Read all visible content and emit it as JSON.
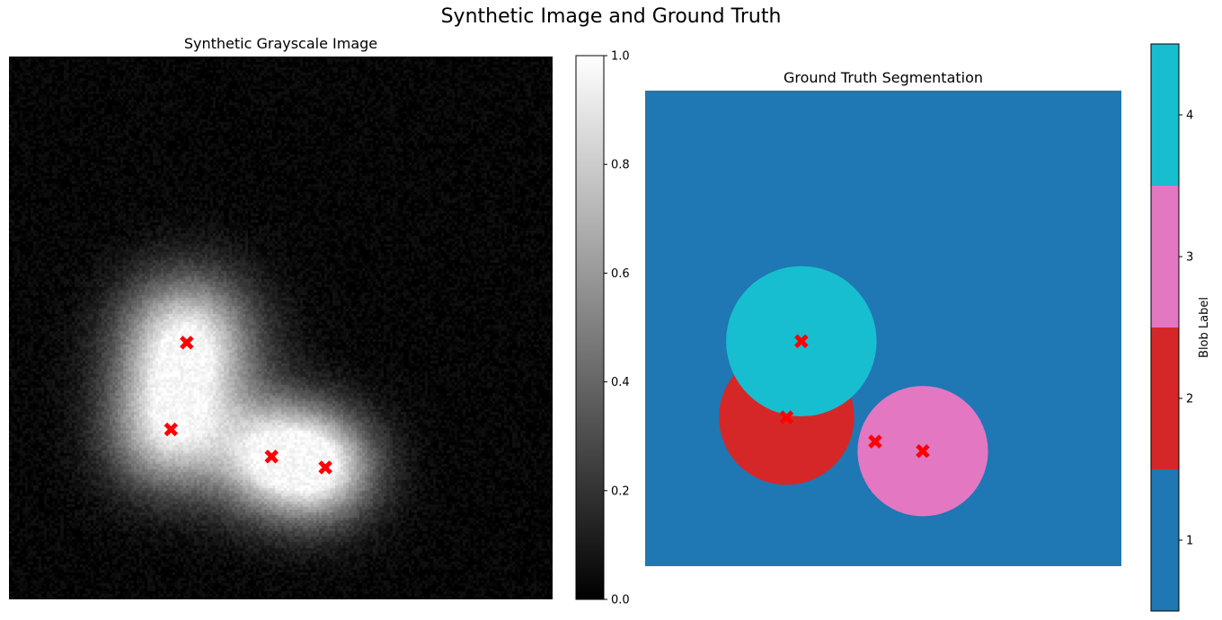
{
  "figure": {
    "title": "Synthetic Image and Ground Truth"
  },
  "chart_data": [
    {
      "type": "heatmap",
      "title": "Synthetic Grayscale Image",
      "colormap": "gray",
      "axes_visible": false,
      "colorbar": {
        "range": [
          0.0,
          1.0
        ],
        "ticks": [
          "0.0",
          "0.2",
          "0.4",
          "0.6",
          "0.8",
          "1.0"
        ],
        "label": ""
      },
      "blobs": [
        {
          "cx": 0.327,
          "cy": 0.527,
          "sigma": 0.085,
          "amplitude": 1.0
        },
        {
          "cx": 0.298,
          "cy": 0.687,
          "sigma": 0.08,
          "amplitude": 0.85
        },
        {
          "cx": 0.483,
          "cy": 0.737,
          "sigma": 0.075,
          "amplitude": 0.85
        },
        {
          "cx": 0.582,
          "cy": 0.757,
          "sigma": 0.07,
          "amplitude": 0.8
        }
      ],
      "noise_level": 0.1,
      "markers": {
        "symbol": "X",
        "color": "#ff0000",
        "points": [
          {
            "x": 0.327,
            "y": 0.527
          },
          {
            "x": 0.298,
            "y": 0.687
          },
          {
            "x": 0.483,
            "y": 0.737
          },
          {
            "x": 0.582,
            "y": 0.757
          }
        ]
      }
    },
    {
      "type": "heatmap",
      "title": "Ground Truth Segmentation",
      "colormap": "tab10",
      "axes_visible": false,
      "colorbar": {
        "label": "Blob Label",
        "ticks": [
          "1",
          "2",
          "3",
          "4"
        ],
        "colors": [
          "#1f77b4",
          "#d62728",
          "#e377c2",
          "#17becf"
        ]
      },
      "background_label": 1,
      "regions": [
        {
          "label": 2,
          "cx": 0.297,
          "cy": 0.687,
          "r": 0.142,
          "color": "#d62728"
        },
        {
          "label": 3,
          "cx": 0.583,
          "cy": 0.758,
          "r": 0.137,
          "color": "#e377c2"
        },
        {
          "label": 4,
          "cx": 0.328,
          "cy": 0.527,
          "r": 0.158,
          "color": "#17becf"
        }
      ],
      "markers": {
        "symbol": "X",
        "color": "#ff0000",
        "points": [
          {
            "x": 0.328,
            "y": 0.527
          },
          {
            "x": 0.297,
            "y": 0.687
          },
          {
            "x": 0.483,
            "y": 0.738
          },
          {
            "x": 0.583,
            "y": 0.758
          }
        ]
      }
    }
  ]
}
